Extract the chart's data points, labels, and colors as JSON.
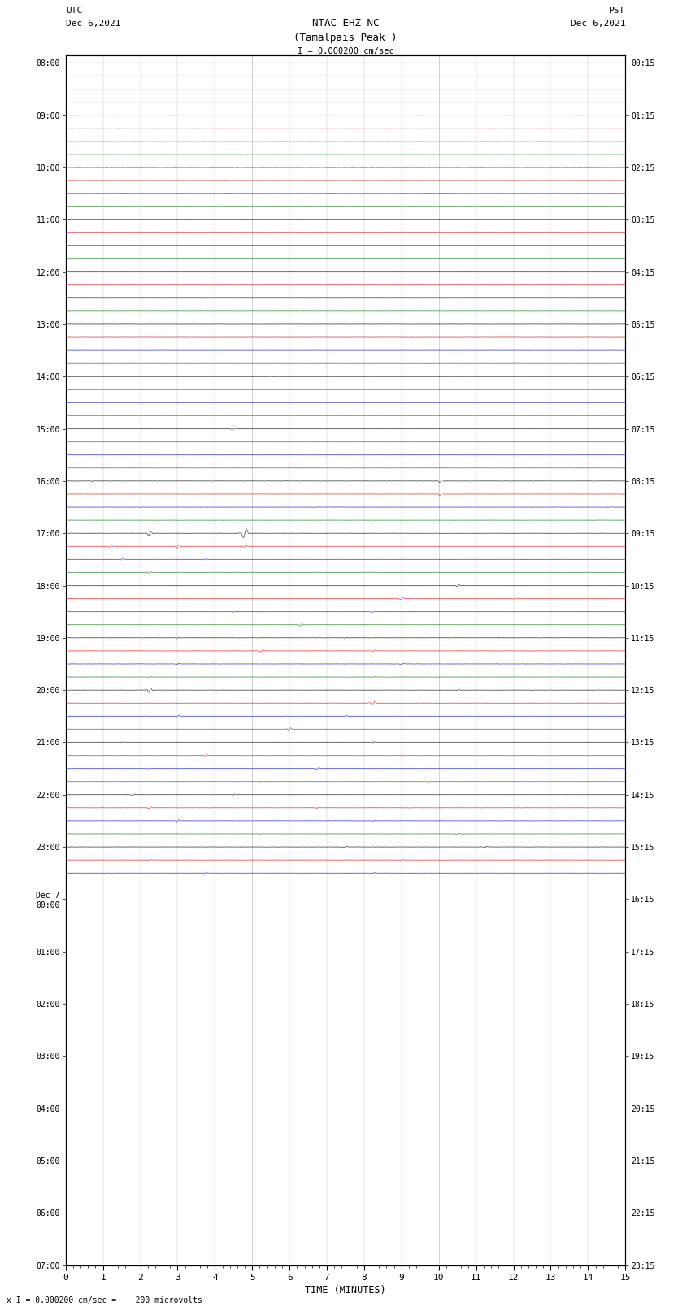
{
  "title_line1": "NTAC EHZ NC",
  "title_line2": "(Tamalpais Peak )",
  "scale_label": "I = 0.000200 cm/sec",
  "bottom_label": "x I = 0.000200 cm/sec =    200 microvolts",
  "left_header_line1": "UTC",
  "left_header_line2": "Dec 6,2021",
  "right_header_line1": "PST",
  "right_header_line2": "Dec 6,2021",
  "xlabel": "TIME (MINUTES)",
  "left_times": [
    "08:00",
    "",
    "",
    "",
    "09:00",
    "",
    "",
    "",
    "10:00",
    "",
    "",
    "",
    "11:00",
    "",
    "",
    "",
    "12:00",
    "",
    "",
    "",
    "13:00",
    "",
    "",
    "",
    "14:00",
    "",
    "",
    "",
    "15:00",
    "",
    "",
    "",
    "16:00",
    "",
    "",
    "",
    "17:00",
    "",
    "",
    "",
    "18:00",
    "",
    "",
    "",
    "19:00",
    "",
    "",
    "",
    "20:00",
    "",
    "",
    "",
    "21:00",
    "",
    "",
    "",
    "22:00",
    "",
    "",
    "",
    "23:00",
    "",
    "",
    "",
    "Dec 7\n00:00",
    "",
    "",
    "",
    "01:00",
    "",
    "",
    "",
    "02:00",
    "",
    "",
    "",
    "03:00",
    "",
    "",
    "",
    "04:00",
    "",
    "",
    "",
    "05:00",
    "",
    "",
    "",
    "06:00",
    "",
    "",
    "",
    "07:00",
    "",
    ""
  ],
  "right_times": [
    "00:15",
    "",
    "",
    "",
    "01:15",
    "",
    "",
    "",
    "02:15",
    "",
    "",
    "",
    "03:15",
    "",
    "",
    "",
    "04:15",
    "",
    "",
    "",
    "05:15",
    "",
    "",
    "",
    "06:15",
    "",
    "",
    "",
    "07:15",
    "",
    "",
    "",
    "08:15",
    "",
    "",
    "",
    "09:15",
    "",
    "",
    "",
    "10:15",
    "",
    "",
    "",
    "11:15",
    "",
    "",
    "",
    "12:15",
    "",
    "",
    "",
    "13:15",
    "",
    "",
    "",
    "14:15",
    "",
    "",
    "",
    "15:15",
    "",
    "",
    "",
    "16:15",
    "",
    "",
    "",
    "17:15",
    "",
    "",
    "",
    "18:15",
    "",
    "",
    "",
    "19:15",
    "",
    "",
    "",
    "20:15",
    "",
    "",
    "",
    "21:15",
    "",
    "",
    "",
    "22:15",
    "",
    "",
    "",
    "23:15",
    "",
    ""
  ],
  "n_rows": 63,
  "minutes": 15,
  "colors_cycle": [
    "black",
    "red",
    "blue",
    "green"
  ],
  "background_color": "white",
  "grid_color": "#999999",
  "fig_width": 8.5,
  "fig_height": 16.13,
  "dpi": 100
}
